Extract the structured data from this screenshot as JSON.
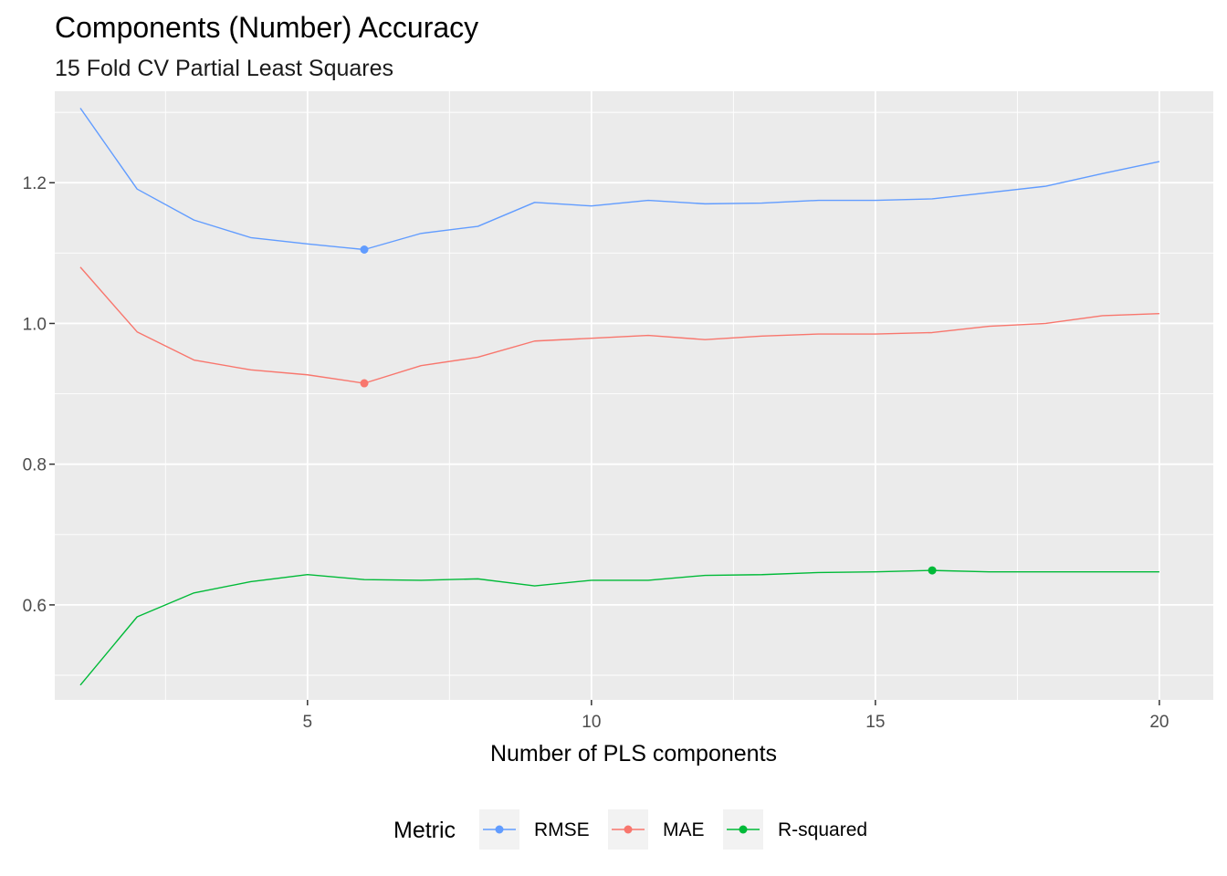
{
  "chart_data": {
    "type": "line",
    "title": "Components (Number) Accuracy",
    "subtitle": "15 Fold CV Partial Least Squares",
    "xlabel": "Number of PLS components",
    "ylabel": "",
    "x": [
      1,
      2,
      3,
      4,
      5,
      6,
      7,
      8,
      9,
      10,
      11,
      12,
      13,
      14,
      15,
      16,
      17,
      18,
      19,
      20
    ],
    "xlim": [
      0.55,
      20.95
    ],
    "ylim": [
      0.465,
      1.33
    ],
    "x_ticks": [
      5,
      10,
      15,
      20
    ],
    "x_tick_labels": [
      "5",
      "10",
      "15",
      "20"
    ],
    "y_ticks": [
      0.6,
      0.8,
      1.0,
      1.2
    ],
    "y_tick_labels": [
      "0.6",
      "0.8",
      "1.0",
      "1.2"
    ],
    "grid": true,
    "legend_position": "bottom",
    "legend_title": "Metric",
    "series": [
      {
        "name": "RMSE",
        "color": "#619CFF",
        "values": [
          1.306,
          1.191,
          1.147,
          1.122,
          1.113,
          1.105,
          1.128,
          1.138,
          1.172,
          1.167,
          1.175,
          1.17,
          1.171,
          1.175,
          1.175,
          1.177,
          1.186,
          1.195,
          1.213,
          1.23
        ],
        "best_index": 5
      },
      {
        "name": "MAE",
        "color": "#F8766D",
        "values": [
          1.08,
          0.988,
          0.948,
          0.934,
          0.927,
          0.915,
          0.94,
          0.952,
          0.975,
          0.979,
          0.983,
          0.977,
          0.982,
          0.985,
          0.985,
          0.987,
          0.996,
          1.0,
          1.011,
          1.014
        ],
        "best_index": 5
      },
      {
        "name": "R-squared",
        "color": "#00BA38",
        "values": [
          0.486,
          0.583,
          0.617,
          0.633,
          0.643,
          0.636,
          0.635,
          0.637,
          0.627,
          0.635,
          0.635,
          0.642,
          0.643,
          0.646,
          0.647,
          0.649,
          0.647,
          0.647,
          0.647,
          0.647
        ],
        "best_index": 15
      }
    ]
  }
}
